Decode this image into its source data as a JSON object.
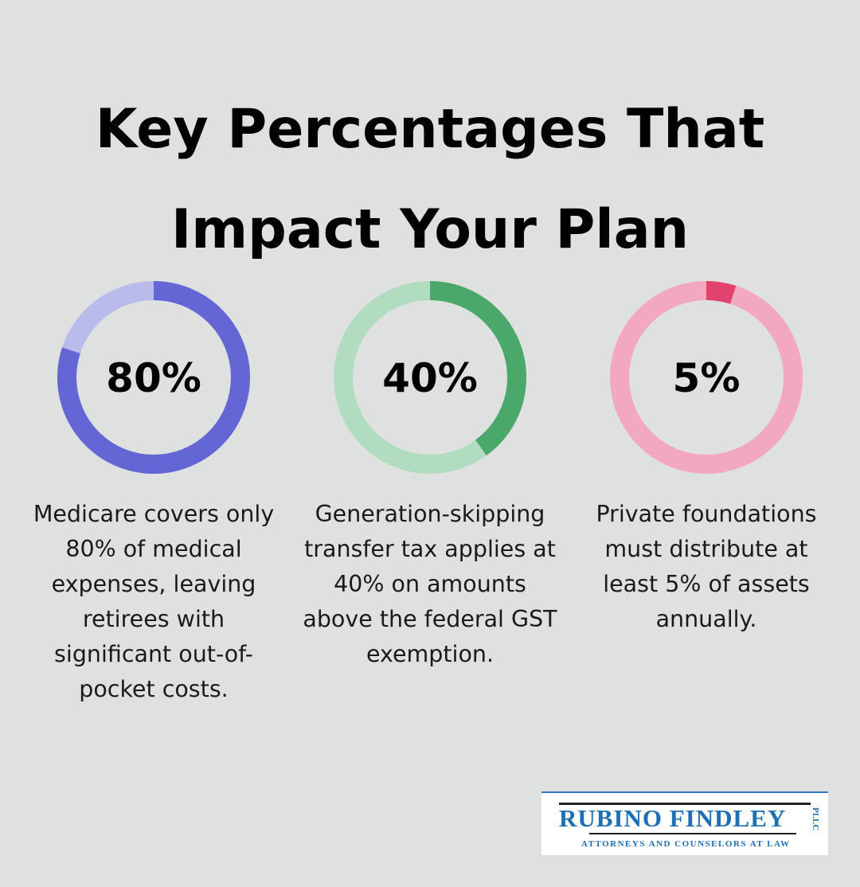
{
  "title": "Key Percentages That Impact Your Plan",
  "chart_data": [
    {
      "type": "pie",
      "variant": "donut",
      "label": "80%",
      "value": 80,
      "color": "#6366d4",
      "track_color": "#b9bbea",
      "description": "Medicare covers only 80% of medical expenses, leaving retirees with significant out-of-pocket costs."
    },
    {
      "type": "pie",
      "variant": "donut",
      "label": "40%",
      "value": 40,
      "color": "#4ba86b",
      "track_color": "#b1dcc0",
      "description": "Generation-skipping transfer tax applies at 40% on amounts above the federal GST exemption."
    },
    {
      "type": "pie",
      "variant": "donut",
      "label": "5%",
      "value": 5,
      "color": "#e0446e",
      "track_color": "#f2a9bf",
      "description": "Private foundations must distribute at least 5% of assets annually."
    }
  ],
  "logo": {
    "name": "RUBINO FINDLEY",
    "suffix": "PLLC",
    "tagline": "ATTORNEYS AND COUNSELORS AT LAW"
  }
}
